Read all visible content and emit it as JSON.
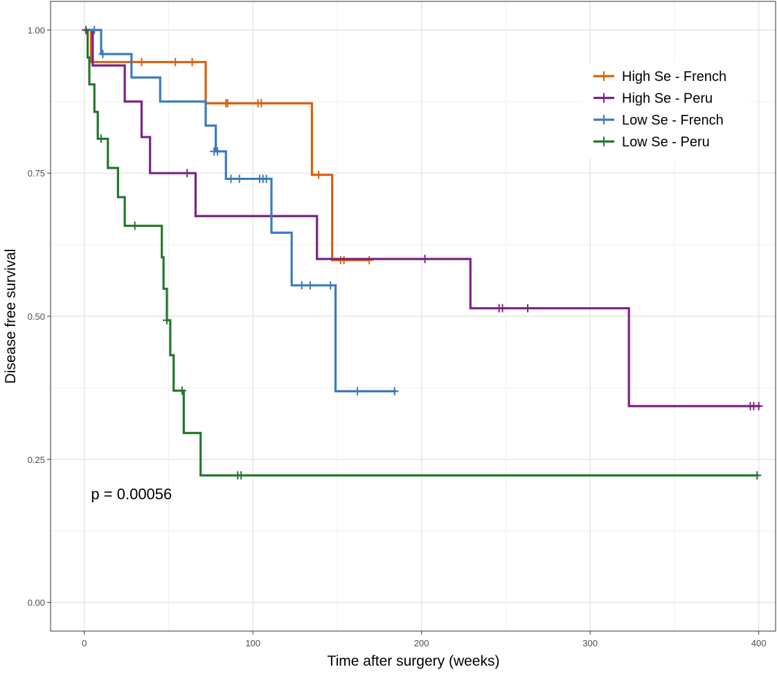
{
  "chart_data": {
    "type": "line",
    "xlabel": "Time after surgery (weeks)",
    "ylabel": "Disease free survival",
    "xlim": [
      -20,
      410
    ],
    "ylim": [
      -0.05,
      1.05
    ],
    "x_ticks": [
      0,
      100,
      200,
      300,
      400
    ],
    "x_tick_labels": [
      "0",
      "100",
      "200",
      "300",
      "400"
    ],
    "y_ticks": [
      0,
      0.25,
      0.5,
      0.75,
      1
    ],
    "y_tick_labels": [
      "0.00",
      "0.25",
      "0.50",
      "0.75",
      "1.00"
    ],
    "grid": true,
    "legend_position": "top-right",
    "annotation": "p = 0.00056",
    "annotation_position": {
      "x": 4,
      "y": 0.19
    },
    "series": [
      {
        "name": "High Se - French",
        "color": "#d95f0e",
        "steps": [
          [
            0,
            1.0
          ],
          [
            4,
            0.944
          ],
          [
            72,
            0.872
          ],
          [
            135,
            0.747
          ],
          [
            147,
            0.598
          ],
          [
            169,
            0.598
          ]
        ],
        "censor": [
          [
            34,
            0.944
          ],
          [
            54,
            0.944
          ],
          [
            64,
            0.944
          ],
          [
            84,
            0.872
          ],
          [
            85,
            0.872
          ],
          [
            103,
            0.872
          ],
          [
            105,
            0.872
          ],
          [
            139,
            0.747
          ],
          [
            152,
            0.598
          ],
          [
            154,
            0.598
          ],
          [
            169,
            0.598
          ]
        ]
      },
      {
        "name": "High Se - Peru",
        "color": "#7b2385",
        "steps": [
          [
            0,
            1.0
          ],
          [
            5,
            0.938
          ],
          [
            24,
            0.875
          ],
          [
            34,
            0.813
          ],
          [
            39,
            0.75
          ],
          [
            66,
            0.675
          ],
          [
            138,
            0.6
          ],
          [
            229,
            0.514
          ],
          [
            323,
            0.343
          ],
          [
            401,
            0.343
          ]
        ],
        "censor": [
          [
            1,
            1.0
          ],
          [
            61,
            0.75
          ],
          [
            202,
            0.6
          ],
          [
            246,
            0.514
          ],
          [
            248,
            0.514
          ],
          [
            263,
            0.514
          ],
          [
            395,
            0.343
          ],
          [
            397,
            0.343
          ],
          [
            400,
            0.343
          ]
        ]
      },
      {
        "name": "Low Se - French",
        "color": "#3a7bbf",
        "steps": [
          [
            0,
            1.0
          ],
          [
            10,
            0.958
          ],
          [
            28,
            0.917
          ],
          [
            45,
            0.875
          ],
          [
            72,
            0.833
          ],
          [
            78,
            0.788
          ],
          [
            84,
            0.74
          ],
          [
            111,
            0.646
          ],
          [
            123,
            0.554
          ],
          [
            149,
            0.369
          ],
          [
            185,
            0.369
          ]
        ],
        "censor": [
          [
            6,
            1.0
          ],
          [
            11,
            0.958
          ],
          [
            77,
            0.788
          ],
          [
            79,
            0.788
          ],
          [
            87,
            0.74
          ],
          [
            92,
            0.74
          ],
          [
            104,
            0.74
          ],
          [
            106,
            0.74
          ],
          [
            108,
            0.74
          ],
          [
            129,
            0.554
          ],
          [
            134,
            0.554
          ],
          [
            146,
            0.554
          ],
          [
            162,
            0.369
          ],
          [
            184,
            0.369
          ]
        ]
      },
      {
        "name": "Low Se - Peru",
        "color": "#23772f",
        "steps": [
          [
            0,
            1.0
          ],
          [
            2,
            0.952
          ],
          [
            3,
            0.905
          ],
          [
            6,
            0.857
          ],
          [
            8,
            0.81
          ],
          [
            14,
            0.759
          ],
          [
            20,
            0.708
          ],
          [
            24,
            0.658
          ],
          [
            46,
            0.603
          ],
          [
            47,
            0.548
          ],
          [
            49,
            0.493
          ],
          [
            51,
            0.432
          ],
          [
            53,
            0.37
          ],
          [
            59,
            0.296
          ],
          [
            69,
            0.222
          ],
          [
            400,
            0.222
          ]
        ],
        "censor": [
          [
            10,
            0.81
          ],
          [
            30,
            0.658
          ],
          [
            49,
            0.493
          ],
          [
            58,
            0.37
          ],
          [
            91,
            0.222
          ],
          [
            93,
            0.222
          ],
          [
            399,
            0.222
          ]
        ]
      }
    ]
  }
}
